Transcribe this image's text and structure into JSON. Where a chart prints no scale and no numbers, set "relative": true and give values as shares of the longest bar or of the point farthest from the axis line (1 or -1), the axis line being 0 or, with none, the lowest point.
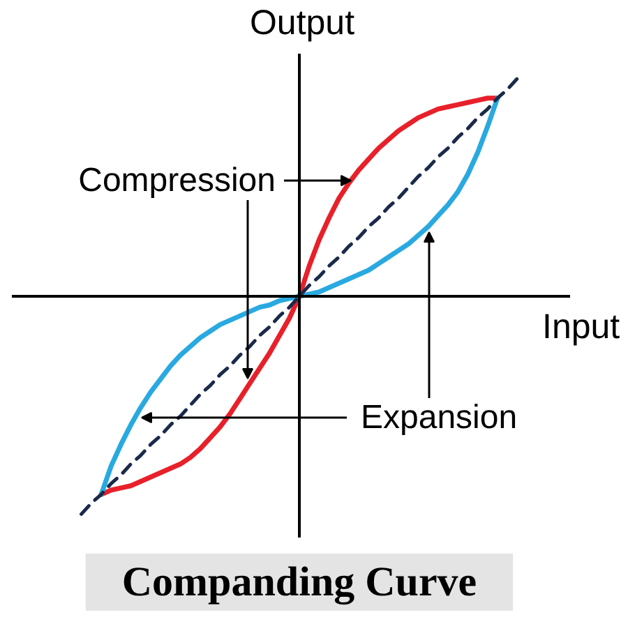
{
  "chart_data": {
    "type": "line",
    "relative": true,
    "title": "Companding Curve",
    "xlabel": "Input",
    "ylabel": "Output",
    "annotations": [
      "Compression",
      "Expansion"
    ],
    "categories": [
      null,
      null,
      null,
      null,
      null,
      null,
      null,
      null,
      null,
      null,
      null,
      null,
      null,
      null,
      null,
      null,
      null,
      null,
      null,
      null,
      null,
      null,
      null,
      null,
      null,
      null,
      null,
      null,
      null,
      null,
      null,
      null,
      null,
      null,
      null,
      null,
      null,
      null,
      null,
      null,
      null,
      null,
      null,
      null,
      null
    ],
    "series": [
      {
        "color": "#e8202a",
        "values": [
          null,
          null,
          -0.91,
          -0.89,
          -0.88,
          -0.87,
          -0.85,
          -0.83,
          -0.81,
          -0.79,
          -0.77,
          -0.74,
          -0.7,
          -0.65,
          -0.6,
          -0.54,
          -0.47,
          -0.4,
          -0.33,
          -0.26,
          -0.18,
          -0.1,
          0,
          0.14,
          0.26,
          0.36,
          0.45,
          0.52,
          0.58,
          0.63,
          0.68,
          0.72,
          0.76,
          0.79,
          0.82,
          0.84,
          0.86,
          0.87,
          0.88,
          0.89,
          0.9,
          0.91,
          0.91,
          null,
          null
        ]
      },
      {
        "color": "#29a9e0",
        "values": [
          null,
          null,
          -0.91,
          -0.78,
          -0.68,
          -0.59,
          -0.51,
          -0.44,
          -0.38,
          -0.32,
          -0.27,
          -0.23,
          -0.19,
          -0.16,
          -0.13,
          -0.11,
          -0.09,
          -0.07,
          -0.05,
          -0.04,
          -0.02,
          -0.01,
          0,
          0.01,
          0.02,
          0.04,
          0.06,
          0.08,
          0.1,
          0.12,
          0.15,
          0.18,
          0.21,
          0.24,
          0.28,
          0.32,
          0.37,
          0.42,
          0.48,
          0.56,
          0.66,
          0.78,
          0.91,
          null,
          null
        ]
      },
      {
        "color": "#1b2a4a",
        "line_style": "dashed",
        "values": [
          -1,
          -0.95,
          -0.91,
          -0.86,
          -0.82,
          -0.77,
          -0.73,
          -0.68,
          -0.64,
          -0.59,
          -0.55,
          -0.5,
          -0.45,
          -0.41,
          -0.36,
          -0.32,
          -0.27,
          -0.23,
          -0.18,
          -0.14,
          -0.09,
          -0.05,
          0,
          0.05,
          0.09,
          0.14,
          0.18,
          0.23,
          0.27,
          0.32,
          0.36,
          0.41,
          0.45,
          0.5,
          0.55,
          0.59,
          0.64,
          0.68,
          0.73,
          0.77,
          0.82,
          0.86,
          0.91,
          0.95,
          1
        ]
      }
    ]
  }
}
